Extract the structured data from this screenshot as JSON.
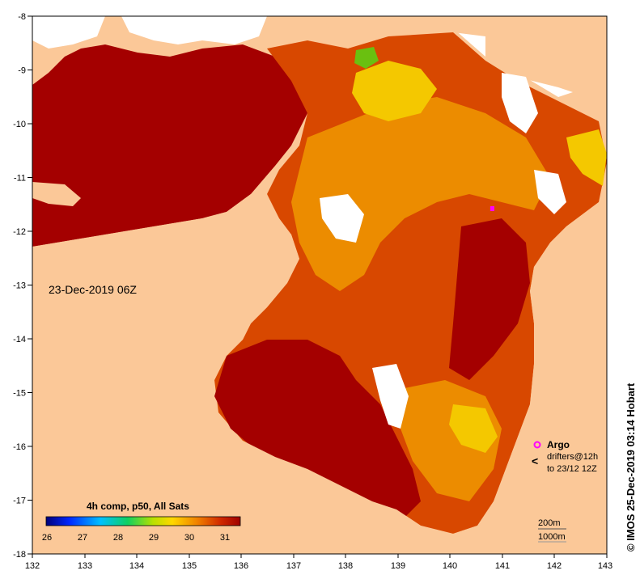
{
  "map": {
    "date_label": "23-Dec-2019 06Z",
    "credit": "© IMOS 25-Dec-2019 03:14 Hobart",
    "colorbar_title": "4h comp, p50, All Sats",
    "colorbar_ticks": [
      "26",
      "27",
      "28",
      "29",
      "30",
      "31"
    ],
    "x_ticks": [
      "132",
      "133",
      "134",
      "135",
      "136",
      "137",
      "138",
      "139",
      "140",
      "141",
      "142",
      "143"
    ],
    "y_ticks": [
      "-8",
      "-9",
      "-10",
      "-11",
      "-12",
      "-13",
      "-14",
      "-15",
      "-16",
      "-17",
      "-18"
    ],
    "legend": {
      "argo_label": "Argo",
      "drifters_line1": "drifters@12h",
      "drifters_line2": "to 23/12 12Z",
      "contour_200": "200m",
      "contour_1000": "1000m"
    },
    "colors": {
      "land": "#fbc898",
      "sst_hot": "#a40000",
      "sst_warm": "#d84800",
      "sst_mid": "#ec8c00",
      "sst_cool": "#f4c800",
      "sst_cold": "#6ac010",
      "marker": "#ff00ff"
    }
  }
}
